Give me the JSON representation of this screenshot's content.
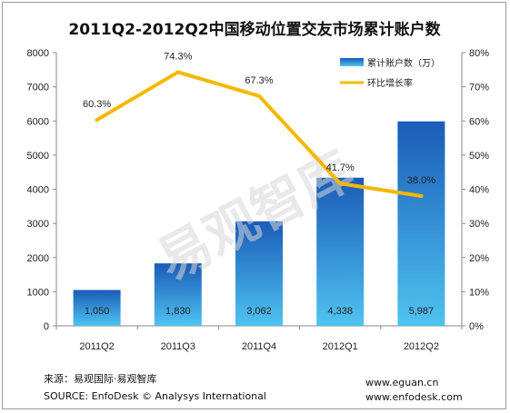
{
  "chart_data": {
    "type": "bar",
    "title": "2011Q2-2012Q2中国移动位置交友市场累计账户数",
    "categories": [
      "2011Q2",
      "2011Q3",
      "2011Q4",
      "2012Q1",
      "2012Q2"
    ],
    "series": [
      {
        "name": "累计账户数（万）",
        "type": "bar",
        "axis": "left",
        "values": [
          1050,
          1830,
          3062,
          4338,
          5987
        ],
        "labels": [
          "1,050",
          "1,830",
          "3,062",
          "4,338",
          "5,987"
        ]
      },
      {
        "name": "环比增长率",
        "type": "line",
        "axis": "right",
        "values": [
          60.3,
          74.3,
          67.3,
          41.7,
          38.0
        ],
        "labels": [
          "60.3%",
          "74.3%",
          "67.3%",
          "41.7%",
          "38.0%"
        ]
      }
    ],
    "ylim_left": [
      0,
      8000
    ],
    "yticks_left": [
      "0",
      "1000",
      "2000",
      "3000",
      "4000",
      "5000",
      "6000",
      "7000",
      "8000"
    ],
    "ylim_right": [
      0,
      80
    ],
    "yticks_right": [
      "0%",
      "10%",
      "20%",
      "30%",
      "40%",
      "50%",
      "60%",
      "70%",
      "80%"
    ],
    "legend_position": "top-right",
    "colors": {
      "bar_top": "#1a5cb8",
      "bar_bottom": "#4fc3f0",
      "line": "#f5b800"
    },
    "watermark": "易观智库"
  },
  "footer": {
    "source_cn": "来源：易观国际·易观智库",
    "source_en": "SOURCE: EnfoDesk © Analysys International",
    "url1": "www.eguan.cn",
    "url2": "www.enfodesk.com"
  }
}
